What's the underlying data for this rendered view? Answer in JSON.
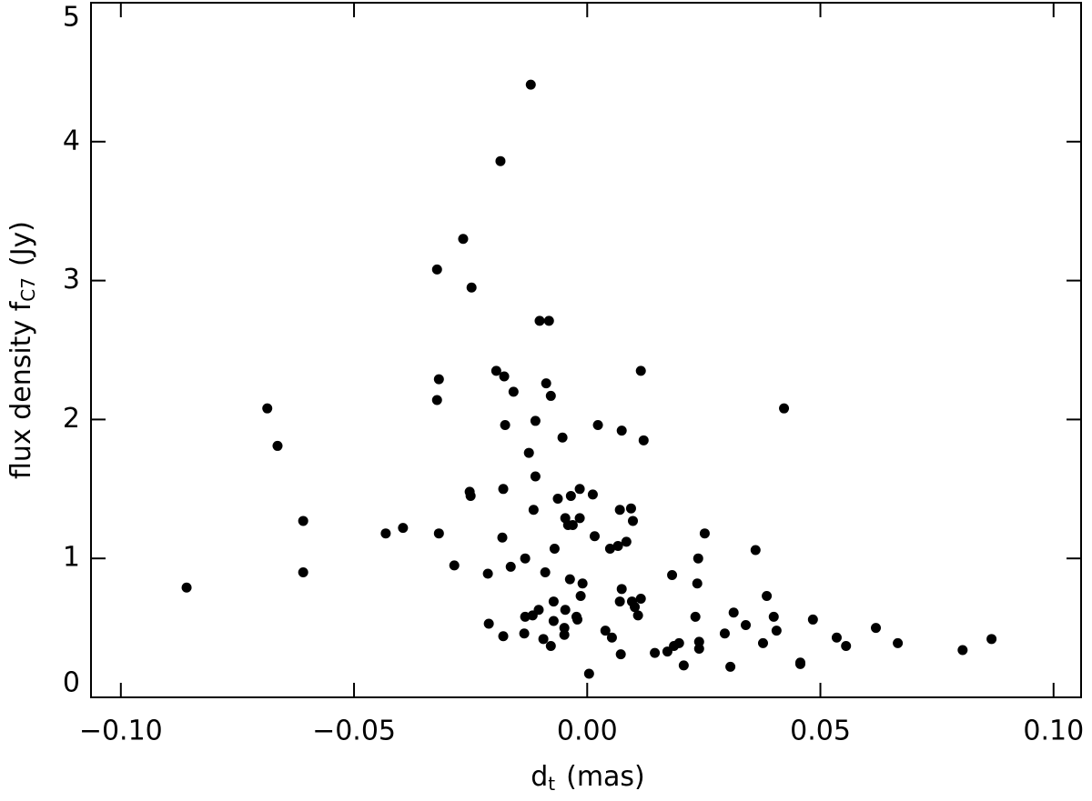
{
  "chart_data": {
    "type": "scatter",
    "xlabel": [
      "d",
      "t",
      "(mas)"
    ],
    "ylabel": [
      "flux density f",
      "C7",
      "(Jy)"
    ],
    "xlim": [
      -0.1064,
      0.1059
    ],
    "ylim": [
      0,
      5
    ],
    "xticks": [
      {
        "value": -0.1,
        "label": "−0.10"
      },
      {
        "value": -0.05,
        "label": "−0.05"
      },
      {
        "value": 0,
        "label": "0.00"
      },
      {
        "value": 0.05,
        "label": "0.05"
      },
      {
        "value": 0.1,
        "label": "0.10"
      }
    ],
    "yticks": [
      0,
      1,
      2,
      3,
      4,
      5
    ],
    "color": "#000000",
    "x": [
      -0.0859,
      -0.0686,
      -0.0664,
      -0.0609,
      -0.0609,
      -0.0432,
      -0.0395,
      -0.0322,
      -0.0318,
      -0.0322,
      -0.0318,
      -0.0285,
      -0.0266,
      -0.0248,
      -0.0252,
      -0.025,
      -0.0213,
      -0.0211,
      -0.0195,
      -0.0186,
      -0.0178,
      -0.0176,
      -0.018,
      -0.0182,
      -0.018,
      -0.0164,
      -0.0158,
      -0.0133,
      -0.0133,
      -0.0135,
      -0.0125,
      -0.0121,
      -0.0117,
      -0.0115,
      -0.0111,
      -0.0111,
      -0.0104,
      -0.0102,
      -0.0094,
      -0.009,
      -0.0088,
      -0.0082,
      -0.0078,
      -0.0078,
      -0.0072,
      -0.007,
      -0.0072,
      -0.0063,
      -0.0053,
      -0.0049,
      -0.0049,
      -0.0047,
      -0.0047,
      -0.0041,
      -0.0035,
      -0.0037,
      -0.0031,
      -0.0023,
      -0.0021,
      -0.0016,
      -0.0016,
      -0.0014,
      -0.001,
      0.0004,
      0.0012,
      0.0016,
      0.0023,
      0.0039,
      0.0049,
      0.0053,
      0.0066,
      0.007,
      0.007,
      0.0072,
      0.0074,
      0.0074,
      0.0084,
      0.0094,
      0.0098,
      0.0096,
      0.0102,
      0.0109,
      0.0115,
      0.0115,
      0.0121,
      0.0145,
      0.0172,
      0.0182,
      0.0186,
      0.0197,
      0.0207,
      0.0232,
      0.0236,
      0.0238,
      0.024,
      0.024,
      0.0252,
      0.0295,
      0.0307,
      0.0314,
      0.034,
      0.0361,
      0.0377,
      0.0385,
      0.04,
      0.0406,
      0.0422,
      0.0457,
      0.0457,
      0.0484,
      0.0535,
      0.0555,
      0.0619,
      0.0666,
      0.0805,
      0.0867
    ],
    "y": [
      0.79,
      2.08,
      1.81,
      1.27,
      0.9,
      1.18,
      1.22,
      3.08,
      2.29,
      2.14,
      1.18,
      0.95,
      3.3,
      2.95,
      1.48,
      1.45,
      0.89,
      0.53,
      2.35,
      3.86,
      2.31,
      1.96,
      1.5,
      1.15,
      0.44,
      0.94,
      2.2,
      1.0,
      0.58,
      0.46,
      1.76,
      4.41,
      0.59,
      1.35,
      1.59,
      1.99,
      0.63,
      2.71,
      0.42,
      0.9,
      2.26,
      2.71,
      2.17,
      0.37,
      0.69,
      1.07,
      0.55,
      1.43,
      1.87,
      0.5,
      0.45,
      0.63,
      1.29,
      1.24,
      1.45,
      0.85,
      1.24,
      0.58,
      0.56,
      1.5,
      1.29,
      0.73,
      0.82,
      0.17,
      1.46,
      1.16,
      1.96,
      0.48,
      1.07,
      0.43,
      1.09,
      1.35,
      0.69,
      0.31,
      1.92,
      0.78,
      1.12,
      1.36,
      1.27,
      0.69,
      0.65,
      0.59,
      0.71,
      2.35,
      1.85,
      0.32,
      0.33,
      0.88,
      0.37,
      0.39,
      0.23,
      0.58,
      0.82,
      1.0,
      0.4,
      0.35,
      1.18,
      0.46,
      0.22,
      0.61,
      0.52,
      1.06,
      0.39,
      0.73,
      0.58,
      0.48,
      2.08,
      0.25,
      0.24,
      0.56,
      0.43,
      0.37,
      0.5,
      0.39,
      0.34,
      0.42
    ]
  }
}
